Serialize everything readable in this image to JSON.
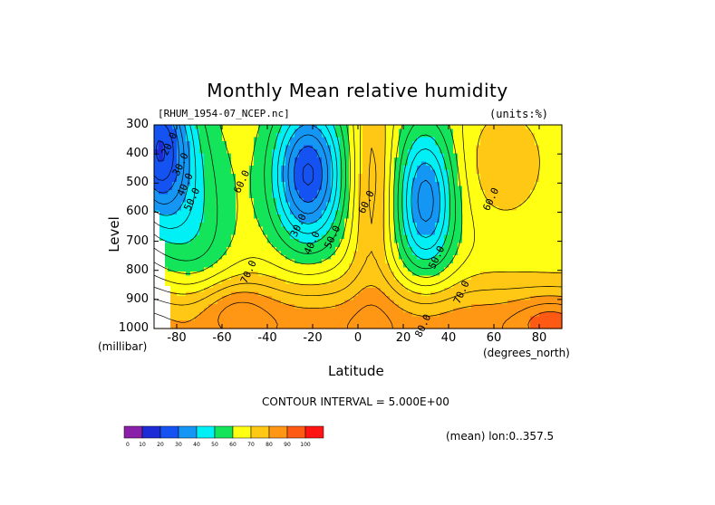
{
  "chart_data": {
    "type": "heatmap",
    "title": "Monthly Mean relative humidity",
    "source_label": "[RHUM_1954-07_NCEP.nc]",
    "units_label": "(units:%)",
    "xlabel": "Latitude",
    "x_units": "(degrees_north)",
    "ylabel": "Level",
    "y_units": "(millibar)",
    "x_ticks": [
      "-80",
      "-60",
      "-40",
      "-20",
      "0",
      "20",
      "40",
      "60",
      "80"
    ],
    "y_ticks": [
      "300",
      "400",
      "500",
      "600",
      "700",
      "800",
      "900",
      "1000"
    ],
    "xlim": [
      -90,
      90
    ],
    "ylim": [
      1000,
      300
    ],
    "contour_interval_label": "CONTOUR INTERVAL = 5.000E+00",
    "footer_note": "(mean) lon:0..357.5",
    "contour_labels": [
      {
        "text": "20.0",
        "lat": -82,
        "lev": 370
      },
      {
        "text": "30.0",
        "lat": -77,
        "lev": 440
      },
      {
        "text": "40.0",
        "lat": -75,
        "lev": 510
      },
      {
        "text": "50.0",
        "lat": -72,
        "lev": 560
      },
      {
        "text": "60.0",
        "lat": -50,
        "lev": 500
      },
      {
        "text": "70.0",
        "lat": -47,
        "lev": 810
      },
      {
        "text": "30.0",
        "lat": -25,
        "lev": 650
      },
      {
        "text": "40.0",
        "lat": -19,
        "lev": 710
      },
      {
        "text": "50.0",
        "lat": -10,
        "lev": 690
      },
      {
        "text": "60.0",
        "lat": 5,
        "lev": 570
      },
      {
        "text": "50.0",
        "lat": 36,
        "lev": 760
      },
      {
        "text": "70.0",
        "lat": 47,
        "lev": 880
      },
      {
        "text": "60.0",
        "lat": 60,
        "lev": 560
      },
      {
        "text": "80.0",
        "lat": 30,
        "lev": 995
      }
    ],
    "colorbar": {
      "labels": [
        "0",
        "10",
        "20",
        "30",
        "40",
        "50",
        "60",
        "70",
        "80",
        "90",
        "100"
      ],
      "colors": [
        "#8a1fa8",
        "#1c2bd6",
        "#1452f2",
        "#1496f5",
        "#00f0f5",
        "#14e45a",
        "#ffff14",
        "#ffc814",
        "#ff9614",
        "#ff5a14",
        "#ff1414"
      ]
    }
  }
}
